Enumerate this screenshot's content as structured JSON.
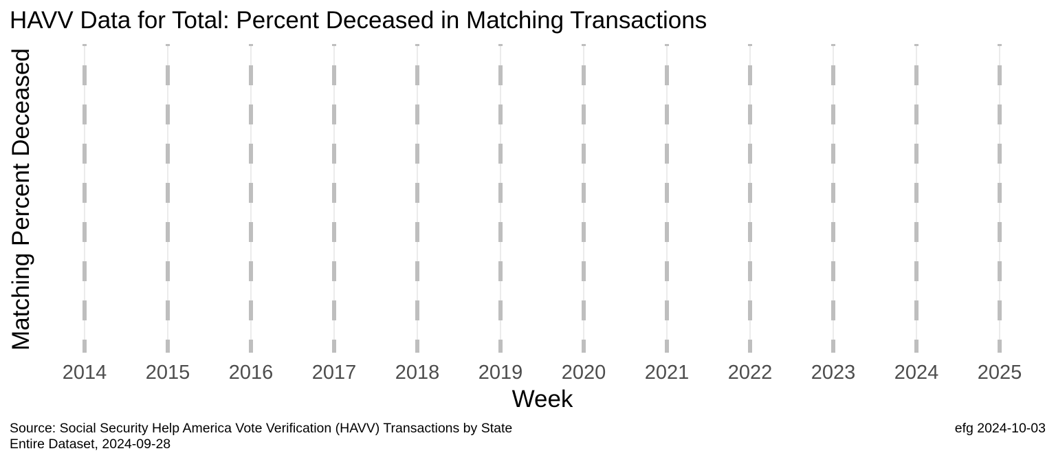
{
  "chart_data": {
    "type": "line",
    "title": "HAVV Data for Total:  Percent Deceased in Matching Transactions",
    "xlabel": "Week",
    "ylabel": "Matching Percent Deceased",
    "x_ticks": [
      "2014",
      "2015",
      "2016",
      "2017",
      "2018",
      "2019",
      "2020",
      "2021",
      "2022",
      "2023",
      "2024",
      "2025"
    ],
    "series": [],
    "grid": true,
    "reference_line_color": "#bebebe",
    "grid_color": "#ebebeb",
    "tick_label_color": "#4d4d4d"
  },
  "caption": {
    "source_line1": "Source:  Social Security Help America Vote Verification (HAVV) Transactions by State",
    "source_line2": "Entire Dataset, 2024-09-28",
    "credit": "efg 2024-10-03"
  }
}
